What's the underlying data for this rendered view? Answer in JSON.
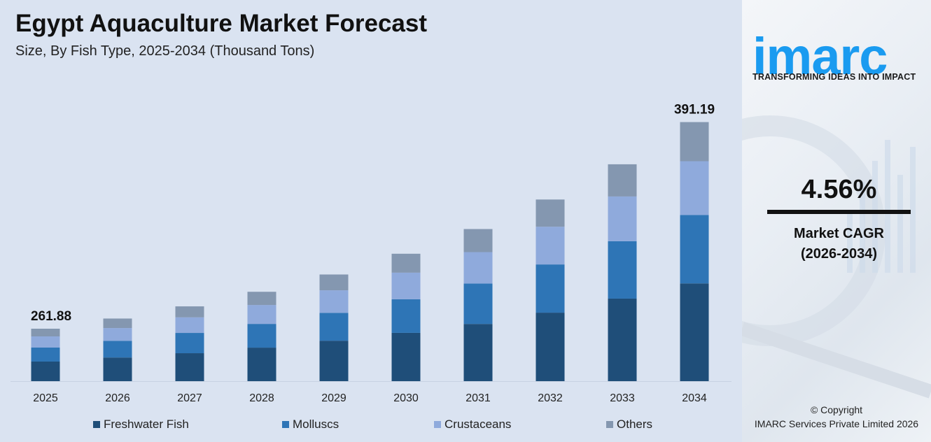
{
  "header": {
    "title": "Egypt Aquaculture Market Forecast",
    "subtitle": "Size, By Fish Type, 2025-2034 (Thousand Tons)"
  },
  "chart_data": {
    "type": "stacked-bar",
    "title": "Egypt Aquaculture Market Forecast",
    "subtitle": "Size, By Fish Type, 2025-2034 (Thousand Tons)",
    "categories": [
      "2025",
      "2026",
      "2027",
      "2028",
      "2029",
      "2030",
      "2031",
      "2032",
      "2033",
      "2034"
    ],
    "series": [
      {
        "name": "Freshwater Fish",
        "color": "#1f4e79",
        "values": [
          97.8,
          103.4,
          107.0,
          112.3,
          118.7,
          124.1,
          128.7,
          134.9,
          142.4,
          147.6
        ]
      },
      {
        "name": "Molluscs",
        "color": "#2e75b6",
        "values": [
          69.8,
          73.0,
          77.6,
          79.5,
          81.8,
          86.3,
          91.0,
          95.0,
          99.0,
          103.3
        ]
      },
      {
        "name": "Crustaceans",
        "color": "#8faadc",
        "values": [
          55.9,
          55.7,
          59.7,
          63.2,
          66.1,
          68.3,
          70.6,
          74.3,
          77.2,
          81.2
        ]
      },
      {
        "name": "Others",
        "color": "#8497b0",
        "values": [
          38.4,
          41.7,
          42.0,
          44.4,
          46.4,
          48.6,
          51.9,
          53.6,
          55.5,
          59.1
        ]
      }
    ],
    "totals": [
      261.88,
      273.8,
      286.3,
      299.4,
      313.0,
      327.3,
      342.2,
      357.8,
      374.1,
      391.19
    ],
    "data_labels": {
      "2025": "261.88",
      "2034": "391.19"
    },
    "xlabel": "",
    "ylabel": "",
    "y_axis_visible": false,
    "grid": false,
    "legend_position": "bottom"
  },
  "legend": [
    "Freshwater Fish",
    "Molluscs",
    "Crustaceans",
    "Others"
  ],
  "brand": {
    "logo_text": "imarc",
    "tagline": "TRANSFORMING IDEAS INTO IMPACT",
    "color": "#1a9bf0"
  },
  "cagr": {
    "value": "4.56%",
    "label_line1": "Market CAGR",
    "label_line2": "(2026-2034)"
  },
  "footer": {
    "copyright": "© Copyright",
    "company": "IMARC Services Private Limited 2026"
  }
}
